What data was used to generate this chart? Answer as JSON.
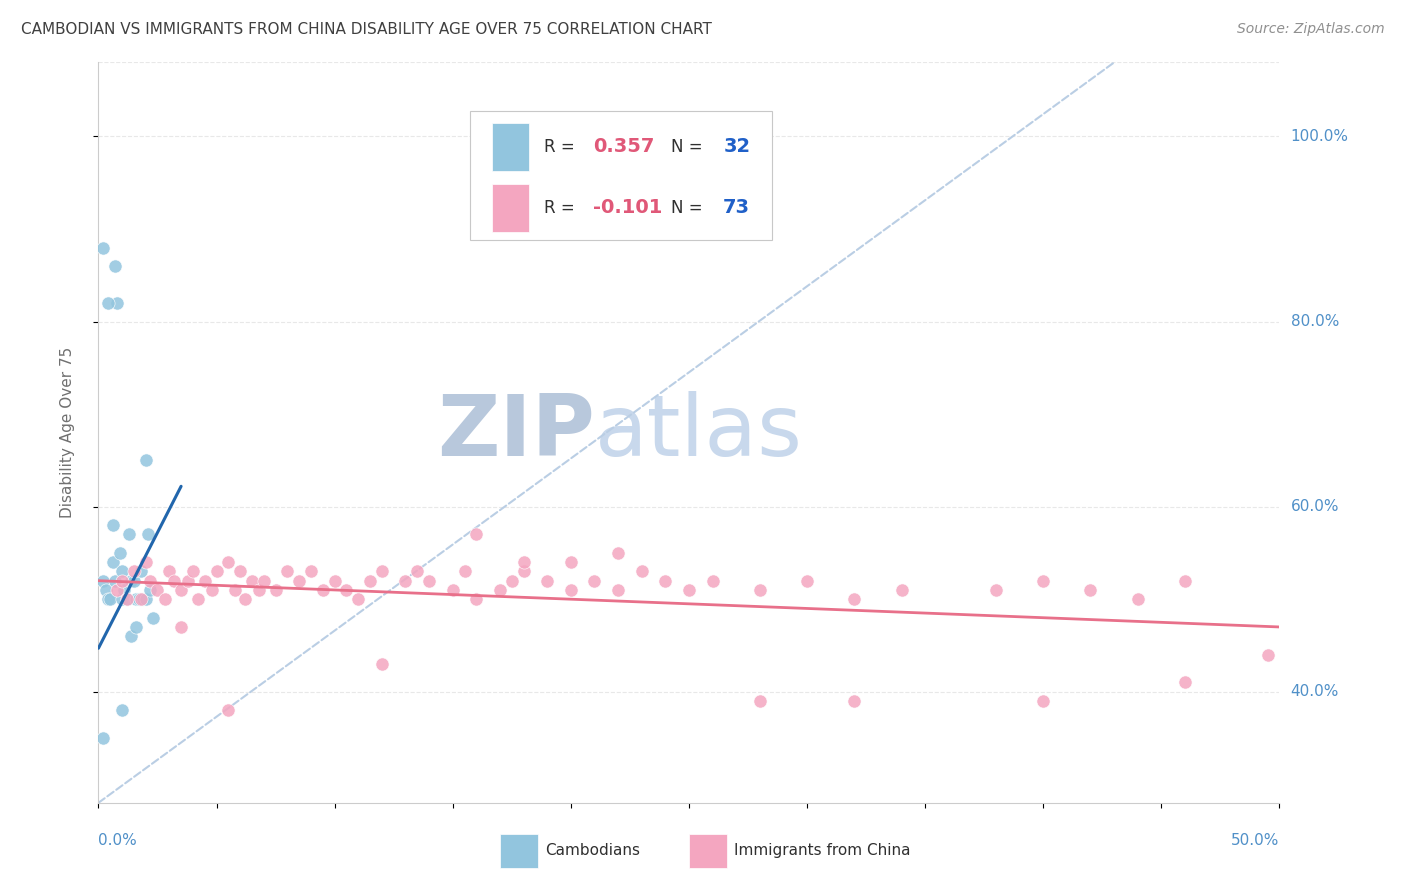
{
  "title": "CAMBODIAN VS IMMIGRANTS FROM CHINA DISABILITY AGE OVER 75 CORRELATION CHART",
  "source": "Source: ZipAtlas.com",
  "ylabel": "Disability Age Over 75",
  "xlim": [
    0.0,
    0.5
  ],
  "ylim": [
    0.28,
    1.08
  ],
  "y_tick_positions": [
    0.4,
    0.6,
    0.8,
    1.0
  ],
  "y_tick_labels": [
    "40.0%",
    "60.0%",
    "80.0%",
    "100.0%"
  ],
  "x_tick_positions": [
    0.0,
    0.05,
    0.1,
    0.15,
    0.2,
    0.25,
    0.3,
    0.35,
    0.4,
    0.45,
    0.5
  ],
  "blue_color": "#92C5DE",
  "pink_color": "#F4A6C0",
  "blue_line_color": "#2166AC",
  "pink_line_color": "#E8708A",
  "dashed_line_color": "#BACEE4",
  "grid_color": "#E8E8E8",
  "title_color": "#404040",
  "source_color": "#909090",
  "axis_label_color": "#5090C8",
  "ylabel_color": "#707070",
  "legend_r_color": "#E05878",
  "legend_n_color": "#2060C8",
  "legend_box_edge": "#C8C8C8",
  "watermark_zip_color": "#B8C8DC",
  "watermark_atlas_color": "#C8D8EC",
  "camb_x": [
    0.002,
    0.003,
    0.004,
    0.005,
    0.006,
    0.007,
    0.007,
    0.008,
    0.009,
    0.01,
    0.01,
    0.011,
    0.012,
    0.013,
    0.014,
    0.015,
    0.016,
    0.017,
    0.018,
    0.019,
    0.02,
    0.021,
    0.022,
    0.023,
    0.002,
    0.004,
    0.006,
    0.01,
    0.014,
    0.02,
    0.002,
    0.016
  ],
  "camb_y": [
    0.52,
    0.51,
    0.5,
    0.5,
    0.54,
    0.86,
    0.52,
    0.82,
    0.55,
    0.53,
    0.5,
    0.51,
    0.5,
    0.57,
    0.52,
    0.52,
    0.5,
    0.5,
    0.53,
    0.5,
    0.5,
    0.57,
    0.51,
    0.48,
    0.88,
    0.82,
    0.58,
    0.38,
    0.46,
    0.65,
    0.35,
    0.47
  ],
  "china_x": [
    0.008,
    0.01,
    0.012,
    0.015,
    0.018,
    0.02,
    0.022,
    0.025,
    0.028,
    0.03,
    0.032,
    0.035,
    0.038,
    0.04,
    0.042,
    0.045,
    0.048,
    0.05,
    0.055,
    0.058,
    0.06,
    0.062,
    0.065,
    0.068,
    0.07,
    0.075,
    0.08,
    0.085,
    0.09,
    0.095,
    0.1,
    0.105,
    0.11,
    0.115,
    0.12,
    0.13,
    0.135,
    0.14,
    0.15,
    0.155,
    0.16,
    0.17,
    0.175,
    0.18,
    0.19,
    0.2,
    0.21,
    0.22,
    0.23,
    0.24,
    0.25,
    0.26,
    0.28,
    0.3,
    0.32,
    0.34,
    0.16,
    0.18,
    0.2,
    0.22,
    0.38,
    0.4,
    0.42,
    0.44,
    0.46,
    0.035,
    0.055,
    0.12,
    0.28,
    0.32,
    0.4,
    0.46,
    0.495
  ],
  "china_y": [
    0.51,
    0.52,
    0.5,
    0.53,
    0.5,
    0.54,
    0.52,
    0.51,
    0.5,
    0.53,
    0.52,
    0.51,
    0.52,
    0.53,
    0.5,
    0.52,
    0.51,
    0.53,
    0.54,
    0.51,
    0.53,
    0.5,
    0.52,
    0.51,
    0.52,
    0.51,
    0.53,
    0.52,
    0.53,
    0.51,
    0.52,
    0.51,
    0.5,
    0.52,
    0.53,
    0.52,
    0.53,
    0.52,
    0.51,
    0.53,
    0.5,
    0.51,
    0.52,
    0.53,
    0.52,
    0.51,
    0.52,
    0.51,
    0.53,
    0.52,
    0.51,
    0.52,
    0.51,
    0.52,
    0.5,
    0.51,
    0.57,
    0.54,
    0.54,
    0.55,
    0.51,
    0.52,
    0.51,
    0.5,
    0.52,
    0.47,
    0.38,
    0.43,
    0.39,
    0.39,
    0.39,
    0.41,
    0.44
  ],
  "camb_trendline_x": [
    0.0,
    0.035
  ],
  "camb_trendline_y": [
    0.447,
    0.622
  ],
  "china_trendline_x": [
    0.0,
    0.5
  ],
  "china_trendline_y": [
    0.52,
    0.47
  ],
  "dash_line_x": [
    0.0,
    0.43
  ],
  "dash_line_y": [
    0.28,
    1.08
  ]
}
